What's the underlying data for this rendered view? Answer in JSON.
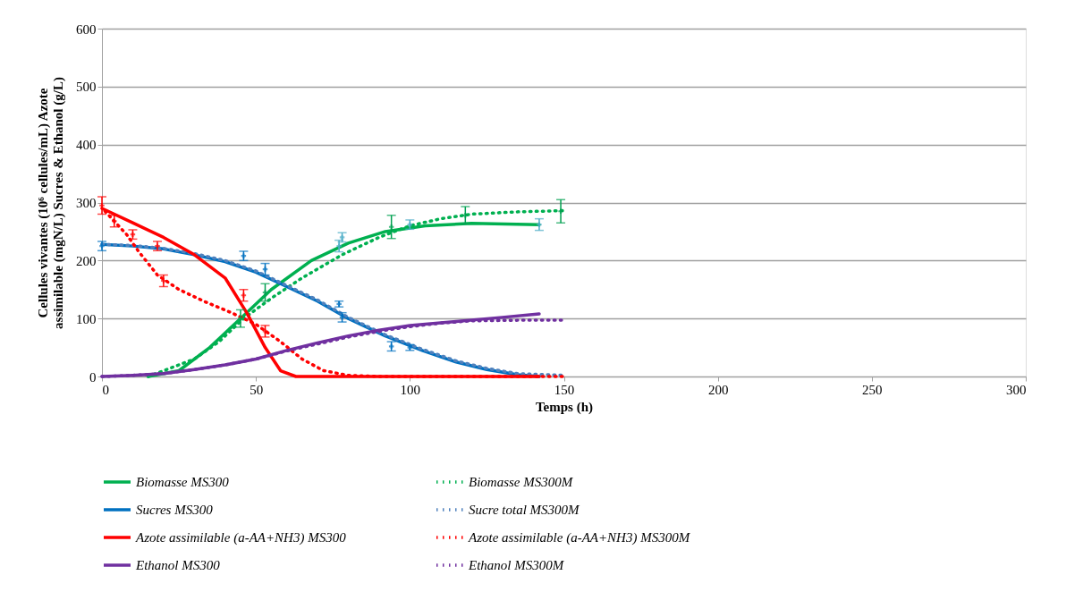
{
  "chart_data": {
    "type": "line",
    "xlabel": "Temps (h)",
    "ylabel": "Cellules vivantes (10⁶ cellules/mL) Azote assimilable (mgN/L) Sucres & Ethanol (g/L)",
    "xlim": [
      0,
      300
    ],
    "xticks": [
      0,
      50,
      100,
      150,
      200,
      250,
      300
    ],
    "ylim": [
      0,
      600
    ],
    "yticks": [
      0,
      100,
      200,
      300,
      400,
      500,
      600
    ],
    "grid": "y",
    "legend": "bottom",
    "marker": "none",
    "series": [
      {
        "name": "Biomasse MS300",
        "color": "#00b050",
        "line_style": "solid",
        "x": [
          15,
          25,
          35,
          45,
          55,
          68,
          80,
          92,
          105,
          120,
          142
        ],
        "values": [
          0,
          10,
          50,
          100,
          150,
          200,
          230,
          250,
          260,
          264,
          262
        ]
      },
      {
        "name": "Biomasse MS300M",
        "color": "#00b050",
        "line_style": "dotted",
        "x": [
          15,
          20,
          30,
          38,
          46,
          55,
          65,
          78,
          90,
          100,
          110,
          120,
          135,
          150
        ],
        "values": [
          0,
          10,
          30,
          60,
          100,
          135,
          170,
          210,
          240,
          260,
          272,
          280,
          284,
          286
        ]
      },
      {
        "name": "Sucres MS300",
        "color": "#0070c0",
        "line_style": "solid",
        "x": [
          0,
          10,
          20,
          30,
          40,
          50,
          58,
          70,
          80,
          92,
          104,
          115,
          125,
          135,
          142
        ],
        "values": [
          228,
          225,
          220,
          210,
          198,
          180,
          160,
          130,
          100,
          70,
          45,
          25,
          12,
          3,
          0
        ]
      },
      {
        "name": "Sucre total MS300M",
        "color": "#4f81bd",
        "line_style": "dotted",
        "x": [
          0,
          10,
          20,
          30,
          40,
          50,
          58,
          70,
          80,
          92,
          104,
          115,
          125,
          135,
          150
        ],
        "values": [
          228,
          226,
          221,
          212,
          200,
          182,
          162,
          132,
          102,
          72,
          47,
          27,
          14,
          5,
          2
        ]
      },
      {
        "name": "Azote assimilable (a-AA+NH3)  MS300",
        "color": "#ff0000",
        "line_style": "solid",
        "x": [
          0,
          10,
          20,
          30,
          40,
          47,
          53,
          58,
          63,
          142
        ],
        "values": [
          290,
          265,
          240,
          210,
          170,
          110,
          50,
          10,
          0,
          0
        ]
      },
      {
        "name": "Azote assimilable (a-AA+NH3) MS300M",
        "color": "#ff0000",
        "line_style": "dotted",
        "x": [
          1,
          8,
          12,
          18,
          25,
          33,
          42,
          50,
          58,
          65,
          72,
          80,
          90,
          150
        ],
        "values": [
          285,
          245,
          215,
          175,
          150,
          130,
          110,
          90,
          60,
          30,
          10,
          2,
          0,
          0
        ]
      },
      {
        "name": "Ethanol MS300",
        "color": "#7030a0",
        "line_style": "solid",
        "x": [
          0,
          10,
          20,
          30,
          40,
          50,
          60,
          70,
          80,
          90,
          100,
          115,
          130,
          142
        ],
        "values": [
          0,
          2,
          5,
          12,
          20,
          30,
          45,
          58,
          70,
          80,
          88,
          95,
          102,
          108
        ]
      },
      {
        "name": "Ethanol MS300M",
        "color": "#7030a0",
        "line_style": "dotted",
        "x": [
          0,
          10,
          20,
          30,
          40,
          50,
          60,
          70,
          80,
          90,
          100,
          110,
          120,
          135,
          150
        ],
        "values": [
          0,
          2,
          5,
          12,
          20,
          30,
          44,
          56,
          68,
          78,
          86,
          92,
          96,
          97,
          97
        ]
      },
      {
        "type": "scatter",
        "marker": "cross",
        "color": "#00a050",
        "x": [
          45,
          53,
          94,
          118,
          149
        ],
        "values": [
          100,
          145,
          258,
          278,
          285
        ],
        "errors": [
          15,
          15,
          20,
          15,
          20
        ]
      },
      {
        "type": "scatter",
        "marker": "cross",
        "color": "#4bacc6",
        "x": [
          77,
          78,
          100,
          142
        ],
        "values": [
          225,
          240,
          262,
          262
        ],
        "errors": [
          10,
          8,
          8,
          10
        ]
      },
      {
        "type": "scatter",
        "marker": "cross",
        "color": "#ff0000",
        "x": [
          0,
          4,
          10,
          18,
          20,
          46,
          53
        ],
        "values": [
          295,
          268,
          245,
          225,
          165,
          140,
          78
        ],
        "errors": [
          15,
          10,
          8,
          8,
          10,
          10,
          10
        ]
      },
      {
        "type": "scatter",
        "marker": "cross",
        "color": "#0070c0",
        "x": [
          0,
          46,
          53,
          77,
          78,
          94,
          100
        ],
        "values": [
          225,
          208,
          185,
          125,
          102,
          52,
          50
        ],
        "errors": [
          8,
          8,
          10,
          5,
          8,
          8,
          5
        ]
      }
    ]
  }
}
